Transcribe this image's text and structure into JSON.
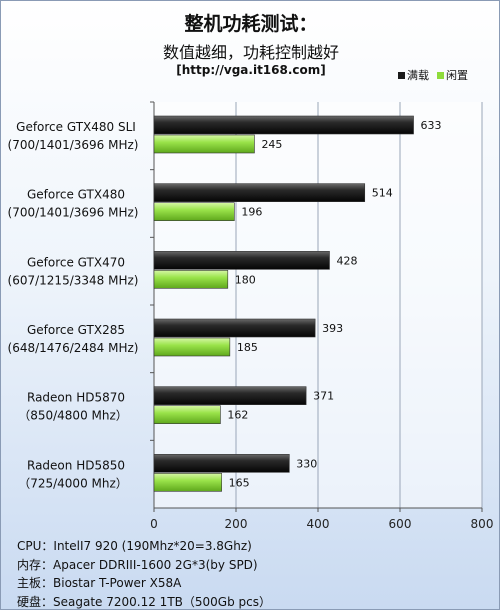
{
  "header": {
    "title": "整机功耗测试：",
    "subtitle": "数值越细，功耗控制越好",
    "source": "[http://vga.it168.com]"
  },
  "legend": [
    {
      "label": "满载",
      "color": "#1a1a1a"
    },
    {
      "label": "闲置",
      "color": "#8fdc3c"
    }
  ],
  "chart_data": {
    "type": "bar",
    "orientation": "horizontal",
    "categories": [
      [
        "Geforce GTX480 SLI",
        "(700/1401/3696 MHz)"
      ],
      [
        "Geforce GTX480",
        "(700/1401/3696 MHz)"
      ],
      [
        "Geforce GTX470",
        "(607/1215/3348 MHz)"
      ],
      [
        "Geforce GTX285",
        "(648/1476/2484 MHz)"
      ],
      [
        "Radeon HD5870",
        "（850/4800  Mhz）"
      ],
      [
        "Radeon HD5850",
        "（725/4000  Mhz）"
      ]
    ],
    "series": [
      {
        "name": "满载",
        "values": [
          633,
          514,
          428,
          393,
          371,
          330
        ],
        "color": "#1a1a1a"
      },
      {
        "name": "闲置",
        "values": [
          245,
          196,
          180,
          185,
          162,
          165
        ],
        "color": "#8fdc3c"
      }
    ],
    "xlim": [
      0,
      800
    ],
    "xticks": [
      "0",
      "200",
      "400",
      "600",
      "800"
    ],
    "grid": true
  },
  "specs": [
    {
      "label": "CPU：",
      "value": "IntelI7 920 (190Mhz*20=3.8Ghz)"
    },
    {
      "label": "内存：",
      "value": "Apacer DDRIII-1600 2G*3(by SPD)"
    },
    {
      "label": "主板：",
      "value": "Biostar T-Power X58A"
    },
    {
      "label": "硬盘：",
      "value": "Seagate 7200.12 1TB（500Gb pcs）"
    }
  ]
}
